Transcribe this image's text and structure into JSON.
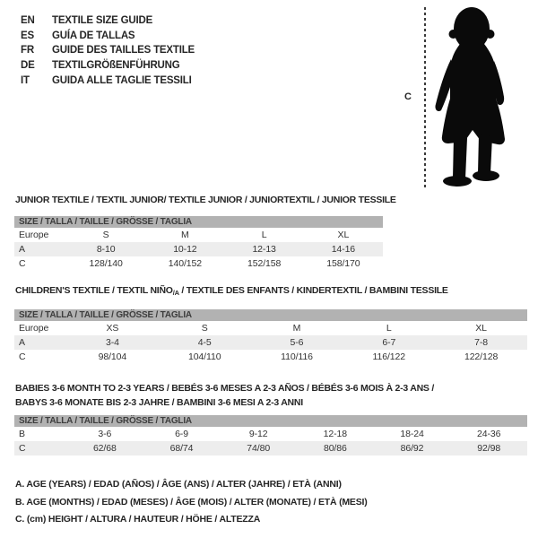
{
  "header": {
    "languages": [
      {
        "code": "EN",
        "title": "TEXTILE SIZE GUIDE"
      },
      {
        "code": "ES",
        "title": "GUÍA DE TALLAS"
      },
      {
        "code": "FR",
        "title": "GUIDE DES TAILLES TEXTILE"
      },
      {
        "code": "DE",
        "title": "TEXTILGRÖßENFÜHRUNG"
      },
      {
        "code": "IT",
        "title": "GUIDA ALLE TAGLIE TESSILI"
      }
    ]
  },
  "figure": {
    "measure_label": "C",
    "silhouette": "baby-toddler-standing"
  },
  "colors": {
    "header_bar": "#b2b2b2",
    "row_shade": "#ededed",
    "silhouette": "#0a0a0a",
    "text": "#262626"
  },
  "tables": [
    {
      "title": "JUNIOR TEXTILE / TEXTIL JUNIOR/ TEXTILE JUNIOR / JUNIORTEXTIL / JUNIOR TESSILE",
      "size_header": "SIZE / TALLA / TAILLE / GRÖSSE / TAGLIA",
      "rows": [
        {
          "label": "Europe",
          "cells": [
            "S",
            "M",
            "L",
            "XL"
          ]
        },
        {
          "label": "A",
          "cells": [
            "8-10",
            "10-12",
            "12-13",
            "14-16"
          ]
        },
        {
          "label": "C",
          "cells": [
            "128/140",
            "140/152",
            "152/158",
            "158/170"
          ]
        }
      ]
    },
    {
      "title_pre": "CHILDREN'S TEXTILE / TEXTIL NIÑO",
      "title_sub": "/A",
      "title_post": " / TEXTILE DES ENFANTS / KINDERTEXTIL / BAMBINI TESSILE",
      "size_header": "SIZE / TALLA / TAILLE / GRÖSSE / TAGLIA",
      "rows": [
        {
          "label": "Europe",
          "cells": [
            "XS",
            "S",
            "M",
            "L",
            "XL"
          ]
        },
        {
          "label": "A",
          "cells": [
            "3-4",
            "4-5",
            "5-6",
            "6-7",
            "7-8"
          ]
        },
        {
          "label": "C",
          "cells": [
            "98/104",
            "104/110",
            "110/116",
            "116/122",
            "122/128"
          ]
        }
      ]
    },
    {
      "title_line1": "BABIES 3-6 MONTH TO 2-3 YEARS / BEBÉS 3-6 MESES A 2-3 AÑOS / BÉBÉS 3-6 MOIS À 2-3 ANS /",
      "title_line2": "BABYS 3-6 MONATE BIS 2-3 JAHRE / BAMBINI 3-6 MESI A 2-3 ANNI",
      "size_header": "SIZE / TALLA / TAILLE / GRÖSSE / TAGLIA",
      "rows": [
        {
          "label": "B",
          "cells": [
            "3-6",
            "6-9",
            "9-12",
            "12-18",
            "18-24",
            "24-36"
          ]
        },
        {
          "label": "C",
          "cells": [
            "62/68",
            "68/74",
            "74/80",
            "80/86",
            "86/92",
            "92/98"
          ]
        }
      ]
    }
  ],
  "footnotes": [
    "A. AGE (YEARS) / EDAD (AÑOS) / ÂGE (ANS) / ALTER (JAHRE) / ETÀ (ANNI)",
    "B. AGE (MONTHS) / EDAD (MESES) / ÂGE (MOIS) / ALTER (MONATE) / ETÀ (MESI)",
    "C. (cm) HEIGHT / ALTURA / HAUTEUR / HÖHE / ALTEZZA"
  ]
}
